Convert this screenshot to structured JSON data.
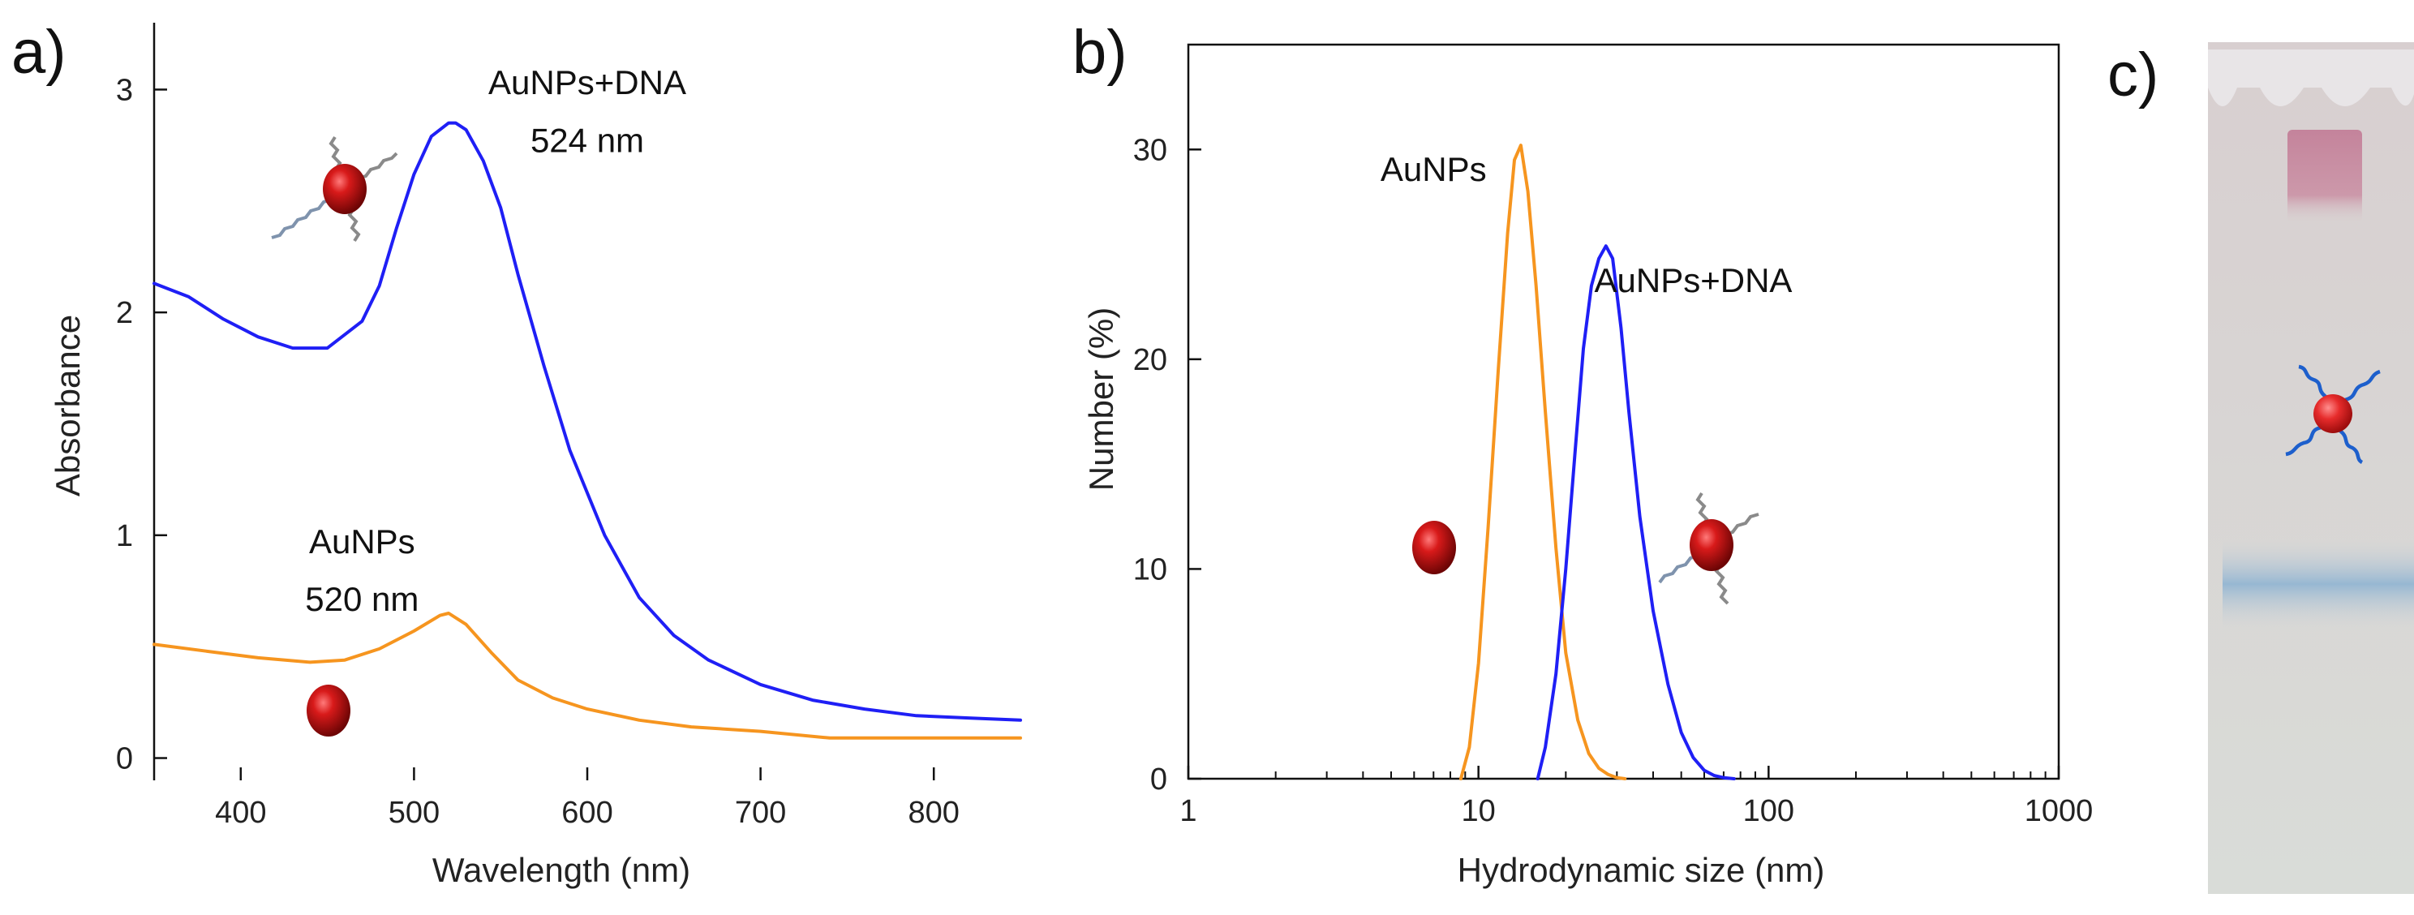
{
  "panels": {
    "a": "a)",
    "b": "b)",
    "c": "c)"
  },
  "colors": {
    "blue_series": "#1f1ff5",
    "orange_series": "#f6951f",
    "nanoparticle": "#b00d0d",
    "gel_background": "#ddd3d3",
    "gel_band_pink": "#c98aa0",
    "gel_band_blue": "#8fb4d2"
  },
  "chart_data": [
    {
      "id": "a",
      "type": "line",
      "title": "",
      "xlabel": "Wavelength (nm)",
      "ylabel": "Absorbance",
      "xlim": [
        350,
        850
      ],
      "ylim": [
        -0.1,
        3.3
      ],
      "xticks": [
        400,
        500,
        600,
        700,
        800
      ],
      "yticks": [
        0,
        1,
        2,
        3
      ],
      "grid": false,
      "series": [
        {
          "name": "AuNPs+DNA",
          "color": "#1f1ff5",
          "x": [
            350,
            370,
            390,
            410,
            430,
            450,
            470,
            480,
            490,
            500,
            510,
            520,
            524,
            530,
            540,
            550,
            560,
            575,
            590,
            610,
            630,
            650,
            670,
            700,
            730,
            760,
            790,
            820,
            850
          ],
          "y": [
            2.13,
            2.07,
            1.97,
            1.89,
            1.84,
            1.84,
            1.96,
            2.12,
            2.38,
            2.62,
            2.79,
            2.85,
            2.85,
            2.82,
            2.68,
            2.47,
            2.17,
            1.76,
            1.38,
            1.0,
            0.72,
            0.55,
            0.44,
            0.33,
            0.26,
            0.22,
            0.19,
            0.18,
            0.17
          ]
        },
        {
          "name": "AuNPs",
          "color": "#f6951f",
          "x": [
            350,
            380,
            410,
            440,
            460,
            480,
            500,
            515,
            520,
            530,
            545,
            560,
            580,
            600,
            630,
            660,
            700,
            740,
            780,
            820,
            850
          ],
          "y": [
            0.51,
            0.48,
            0.45,
            0.43,
            0.44,
            0.49,
            0.57,
            0.64,
            0.65,
            0.6,
            0.47,
            0.35,
            0.27,
            0.22,
            0.17,
            0.14,
            0.12,
            0.09,
            0.09,
            0.09,
            0.09
          ]
        }
      ],
      "annotations": [
        {
          "text": "AuNPs+DNA",
          "x": 600,
          "y": 2.98
        },
        {
          "text": "524 nm",
          "x": 600,
          "y": 2.72
        },
        {
          "text": "AuNPs",
          "x": 470,
          "y": 0.92
        },
        {
          "text": "520 nm",
          "x": 470,
          "y": 0.66
        }
      ]
    },
    {
      "id": "b",
      "type": "line",
      "title": "",
      "xlabel": "Hydrodynamic size (nm)",
      "ylabel": "Number (%)",
      "xscale": "log",
      "xlim": [
        1,
        1000
      ],
      "ylim": [
        0,
        35
      ],
      "xticks": [
        1,
        10,
        100,
        1000
      ],
      "xtick_labels": [
        "1",
        "10",
        "100",
        "1000"
      ],
      "yticks": [
        0,
        10,
        20,
        30
      ],
      "grid": false,
      "series": [
        {
          "name": "AuNPs",
          "color": "#f6951f",
          "x": [
            8.7,
            9.3,
            10,
            10.8,
            11.7,
            12.6,
            13.3,
            14,
            14.8,
            15.8,
            17,
            18.5,
            20,
            22,
            24,
            26,
            28,
            30,
            32
          ],
          "y": [
            0,
            1.5,
            5.5,
            12,
            19.5,
            26,
            29.5,
            30.2,
            28,
            23.5,
            17.5,
            11,
            6,
            2.8,
            1.2,
            0.5,
            0.2,
            0.05,
            0
          ]
        },
        {
          "name": "AuNPs+DNA",
          "color": "#1f1ff5",
          "x": [
            16,
            17,
            18.5,
            20,
            21.5,
            23,
            24.5,
            26,
            27.5,
            29,
            31,
            33,
            36,
            40,
            45,
            50,
            55,
            60,
            65,
            70,
            76
          ],
          "y": [
            0,
            1.5,
            5,
            10,
            15.5,
            20.5,
            23.5,
            24.8,
            25.4,
            24.8,
            21.5,
            17.5,
            12.5,
            8,
            4.5,
            2.2,
            1,
            0.4,
            0.15,
            0.05,
            0
          ]
        }
      ],
      "annotations": [
        {
          "text": "AuNPs",
          "x": 7.0,
          "y": 28.5
        },
        {
          "text": "AuNPs+DNA",
          "x": 55,
          "y": 23.2
        }
      ]
    }
  ]
}
